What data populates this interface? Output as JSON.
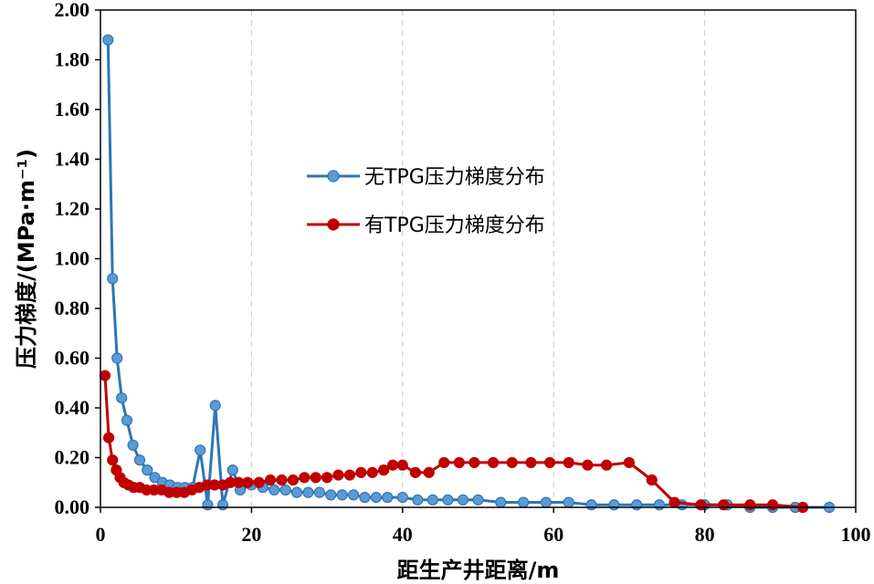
{
  "chart_data": {
    "type": "line",
    "xlabel": "距生产井距离/m",
    "ylabel": "压力梯度/(MPa·m⁻¹)",
    "xlim": [
      0,
      100
    ],
    "ylim": [
      0,
      2.0
    ],
    "xticks": [
      "0",
      "20",
      "40",
      "60",
      "80",
      "100"
    ],
    "yticks": [
      "0.00",
      "0.20",
      "0.40",
      "0.60",
      "0.80",
      "1.00",
      "1.20",
      "1.40",
      "1.60",
      "1.80",
      "2.00"
    ],
    "grid": "vertical-dashed",
    "legend_position": "center",
    "series": [
      {
        "name": "无TPG压力梯度分布",
        "color": "#2e75b6",
        "marker": "#5b9bd5",
        "x": [
          1.0,
          1.6,
          2.2,
          2.8,
          3.5,
          4.3,
          5.2,
          6.2,
          7.2,
          8.2,
          9.2,
          10.2,
          11.2,
          12.2,
          13.2,
          14.2,
          15.2,
          16.2,
          17.5,
          18.5,
          20.0,
          21.5,
          23.0,
          24.5,
          26.0,
          27.5,
          29.0,
          30.5,
          32.0,
          33.5,
          35.0,
          36.5,
          38.0,
          40.0,
          42.0,
          44.0,
          46.0,
          48.0,
          50.0,
          53.0,
          56.0,
          59.0,
          62.0,
          65.0,
          68.0,
          71.0,
          74.0,
          77.0,
          80.0,
          83.0,
          86.0,
          89.0,
          92.0,
          96.5
        ],
        "values": [
          1.88,
          0.92,
          0.6,
          0.44,
          0.35,
          0.25,
          0.19,
          0.15,
          0.12,
          0.1,
          0.09,
          0.08,
          0.08,
          0.08,
          0.23,
          0.01,
          0.41,
          0.01,
          0.15,
          0.07,
          0.09,
          0.08,
          0.07,
          0.07,
          0.06,
          0.06,
          0.06,
          0.05,
          0.05,
          0.05,
          0.04,
          0.04,
          0.04,
          0.04,
          0.03,
          0.03,
          0.03,
          0.03,
          0.03,
          0.02,
          0.02,
          0.02,
          0.02,
          0.01,
          0.01,
          0.01,
          0.01,
          0.01,
          0.01,
          0.01,
          0.0,
          0.0,
          0.0,
          0.0
        ]
      },
      {
        "name": "有TPG压力梯度分布",
        "color": "#c00000",
        "marker": "#c00000",
        "x": [
          0.6,
          1.1,
          1.6,
          2.1,
          2.6,
          3.1,
          3.7,
          4.4,
          5.2,
          6.1,
          7.1,
          8.1,
          9.1,
          10.1,
          11.1,
          12.1,
          13.1,
          14.1,
          15.1,
          16.2,
          17.2,
          18.3,
          19.5,
          21.0,
          22.5,
          24.0,
          25.5,
          27.0,
          28.5,
          30.0,
          31.5,
          33.0,
          34.5,
          36.0,
          37.5,
          38.7,
          40.0,
          41.7,
          43.5,
          45.5,
          47.5,
          49.5,
          52.0,
          54.5,
          57.0,
          59.5,
          62.0,
          64.5,
          67.0,
          70.0,
          73.0,
          76.0,
          79.5,
          82.5,
          86.0,
          89.0,
          93.0
        ],
        "values": [
          0.53,
          0.28,
          0.19,
          0.15,
          0.12,
          0.1,
          0.09,
          0.08,
          0.08,
          0.07,
          0.07,
          0.07,
          0.06,
          0.06,
          0.06,
          0.07,
          0.08,
          0.09,
          0.09,
          0.09,
          0.1,
          0.1,
          0.1,
          0.1,
          0.11,
          0.11,
          0.11,
          0.12,
          0.12,
          0.12,
          0.13,
          0.13,
          0.14,
          0.14,
          0.15,
          0.17,
          0.17,
          0.14,
          0.14,
          0.18,
          0.18,
          0.18,
          0.18,
          0.18,
          0.18,
          0.18,
          0.18,
          0.17,
          0.17,
          0.18,
          0.11,
          0.02,
          0.01,
          0.01,
          0.01,
          0.01,
          0.0
        ]
      }
    ]
  }
}
